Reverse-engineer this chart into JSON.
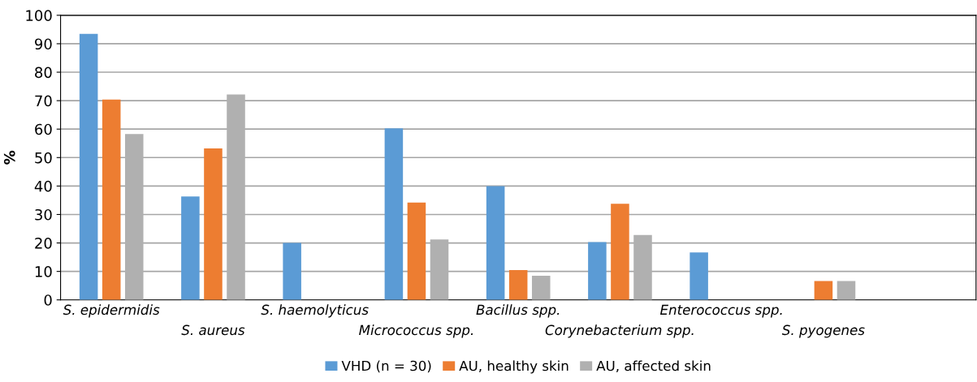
{
  "chart_data": {
    "type": "bar",
    "ylabel": "%",
    "categories": [
      "S. epidermidis",
      "S. aureus",
      "S. haemolyticus",
      "Micrococcus spp.",
      "Bacillus spp.",
      "Corynebacterium spp.",
      "Enterococcus spp.",
      "S. pyogenes",
      null
    ],
    "series": [
      {
        "name": "VHD (n = 30)",
        "color": "#5b9bd5",
        "values": [
          93.5,
          36.3,
          20,
          60.3,
          40,
          20.3,
          16.7,
          null,
          null
        ]
      },
      {
        "name": "AU, healthy skin",
        "color": "#ed7d31",
        "values": [
          70.4,
          53.2,
          null,
          34.2,
          10.5,
          33.8,
          null,
          6.6,
          null
        ]
      },
      {
        "name": "AU, affected skin",
        "color": "#b0b0b0",
        "values": [
          58.3,
          72.2,
          null,
          21.2,
          8.5,
          22.8,
          null,
          6.6,
          null
        ]
      }
    ],
    "ylim": [
      0,
      100
    ],
    "yticks": [
      0,
      10,
      20,
      30,
      40,
      50,
      60,
      70,
      80,
      90,
      100
    ],
    "grid": "y",
    "legend": "bottom"
  }
}
